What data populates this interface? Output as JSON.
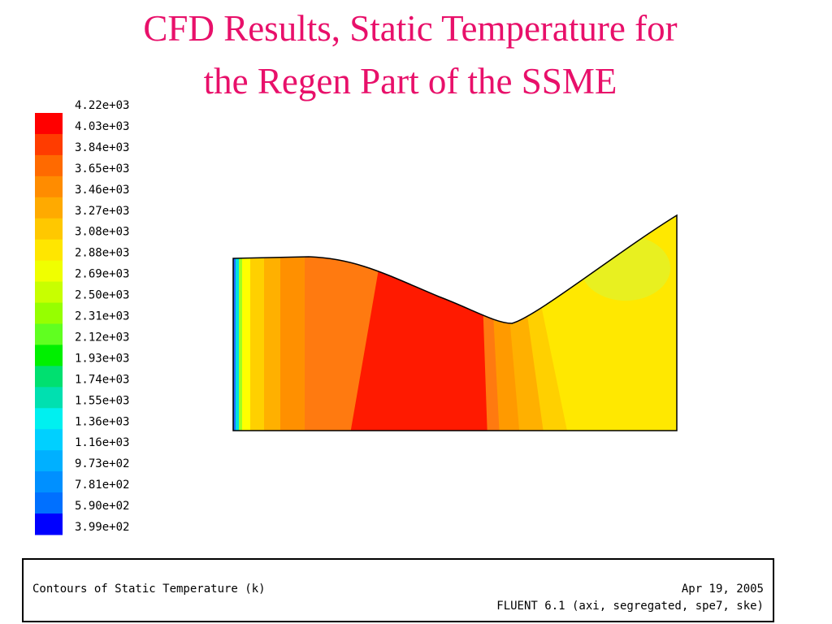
{
  "title": [
    "CFD Results, Static Temperature for",
    "the Regen Part of the SSME"
  ],
  "colorbar": {
    "labels": [
      "4.22e+03",
      "4.03e+03",
      "3.84e+03",
      "3.65e+03",
      "3.46e+03",
      "3.27e+03",
      "3.08e+03",
      "2.88e+03",
      "2.69e+03",
      "2.50e+03",
      "2.31e+03",
      "2.12e+03",
      "1.93e+03",
      "1.74e+03",
      "1.55e+03",
      "1.36e+03",
      "1.16e+03",
      "9.73e+02",
      "7.81e+02",
      "5.90e+02",
      "3.99e+02"
    ]
  },
  "footer": {
    "caption": "Contours of Static Temperature (k)",
    "date": "Apr 19, 2005",
    "solver": "FLUENT 6.1 (axi, segregated, spe7, ske)"
  }
}
